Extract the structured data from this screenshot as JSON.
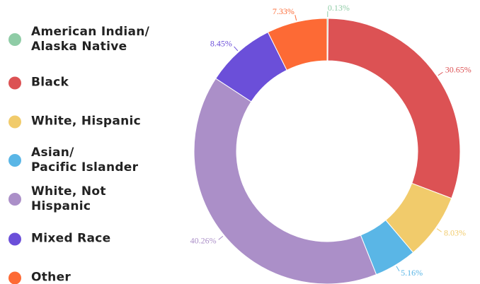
{
  "chart_data": {
    "type": "donut",
    "categories": [
      "American Indian/\nAlaska Native",
      "Black",
      "White, Hispanic",
      "Asian/\nPacific Islander",
      "White, Not\nHispanic",
      "Mixed Race",
      "Other"
    ],
    "values": [
      0.13,
      30.65,
      8.03,
      5.16,
      40.26,
      8.45,
      7.33
    ],
    "value_labels": [
      "0.13%",
      "30.65%",
      "8.03%",
      "5.16%",
      "40.26%",
      "8.45%",
      "7.33%"
    ],
    "colors": [
      "#8fcca6",
      "#dc5254",
      "#f1cb6b",
      "#5ab6e6",
      "#ab8fc8",
      "#6b4fd9",
      "#fd6a35"
    ],
    "legend": "left"
  }
}
